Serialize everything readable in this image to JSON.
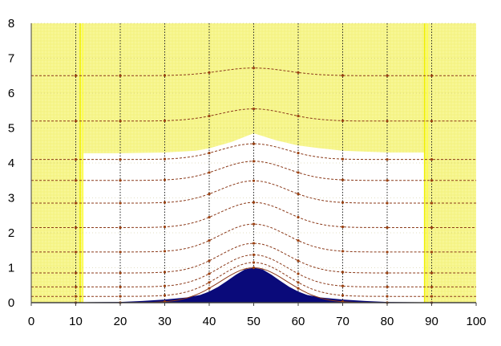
{
  "chart_data": {
    "type": "area",
    "title": "",
    "xlabel": "",
    "ylabel": "",
    "xlim": [
      0,
      100
    ],
    "ylim": [
      0,
      8
    ],
    "grid": true,
    "legend": "none",
    "x_ticks": [
      "0",
      "10",
      "20",
      "30",
      "40",
      "50",
      "60",
      "70",
      "80",
      "90",
      "100"
    ],
    "y_ticks": [
      "0",
      "1",
      "2",
      "3",
      "4",
      "5",
      "6",
      "7",
      "8"
    ],
    "colors": {
      "background_fill": "#f6f58a",
      "interior_fill": "#ffffff",
      "bump_fill": "#0a0a7a",
      "contour_line": "#8b3a1a",
      "contour_marker": "#9a4010",
      "grid_line": "#222222",
      "axis_line": "#404040",
      "boundary_line": "#f0f000"
    },
    "white_region": {
      "x_range": [
        11.5,
        88.5
      ],
      "top_edge": {
        "x": [
          11.5,
          20,
          30,
          37,
          40,
          45,
          50,
          55,
          60,
          65,
          70,
          80,
          88.5
        ],
        "y": [
          4.28,
          4.28,
          4.3,
          4.35,
          4.42,
          4.6,
          4.85,
          4.65,
          4.5,
          4.42,
          4.35,
          4.3,
          4.3
        ]
      }
    },
    "bump": {
      "x": [
        10,
        20,
        25,
        30,
        35,
        38,
        40,
        42,
        44,
        46,
        48,
        50,
        52,
        54,
        56,
        58,
        60,
        62,
        65,
        70,
        75,
        80,
        90
      ],
      "y": [
        0.01,
        0.02,
        0.05,
        0.09,
        0.15,
        0.22,
        0.32,
        0.45,
        0.62,
        0.8,
        0.95,
        1.0,
        0.95,
        0.8,
        0.62,
        0.45,
        0.32,
        0.22,
        0.15,
        0.09,
        0.05,
        0.02,
        0.01
      ]
    },
    "vertical_lines_x": [
      10,
      20,
      30,
      40,
      50,
      60,
      70,
      80,
      90
    ],
    "series": [
      {
        "base": 0.0,
        "amp": 1.0
      },
      {
        "base": 0.18,
        "amp": 0.97
      },
      {
        "base": 0.45,
        "amp": 0.92
      },
      {
        "base": 0.85,
        "amp": 0.85
      },
      {
        "base": 1.45,
        "amp": 0.8
      },
      {
        "base": 2.15,
        "amp": 0.72
      },
      {
        "base": 2.85,
        "amp": 0.64
      },
      {
        "base": 3.5,
        "amp": 0.55
      },
      {
        "base": 4.1,
        "amp": 0.45
      },
      {
        "base": 5.2,
        "amp": 0.35
      },
      {
        "base": 6.5,
        "amp": 0.22
      }
    ]
  }
}
